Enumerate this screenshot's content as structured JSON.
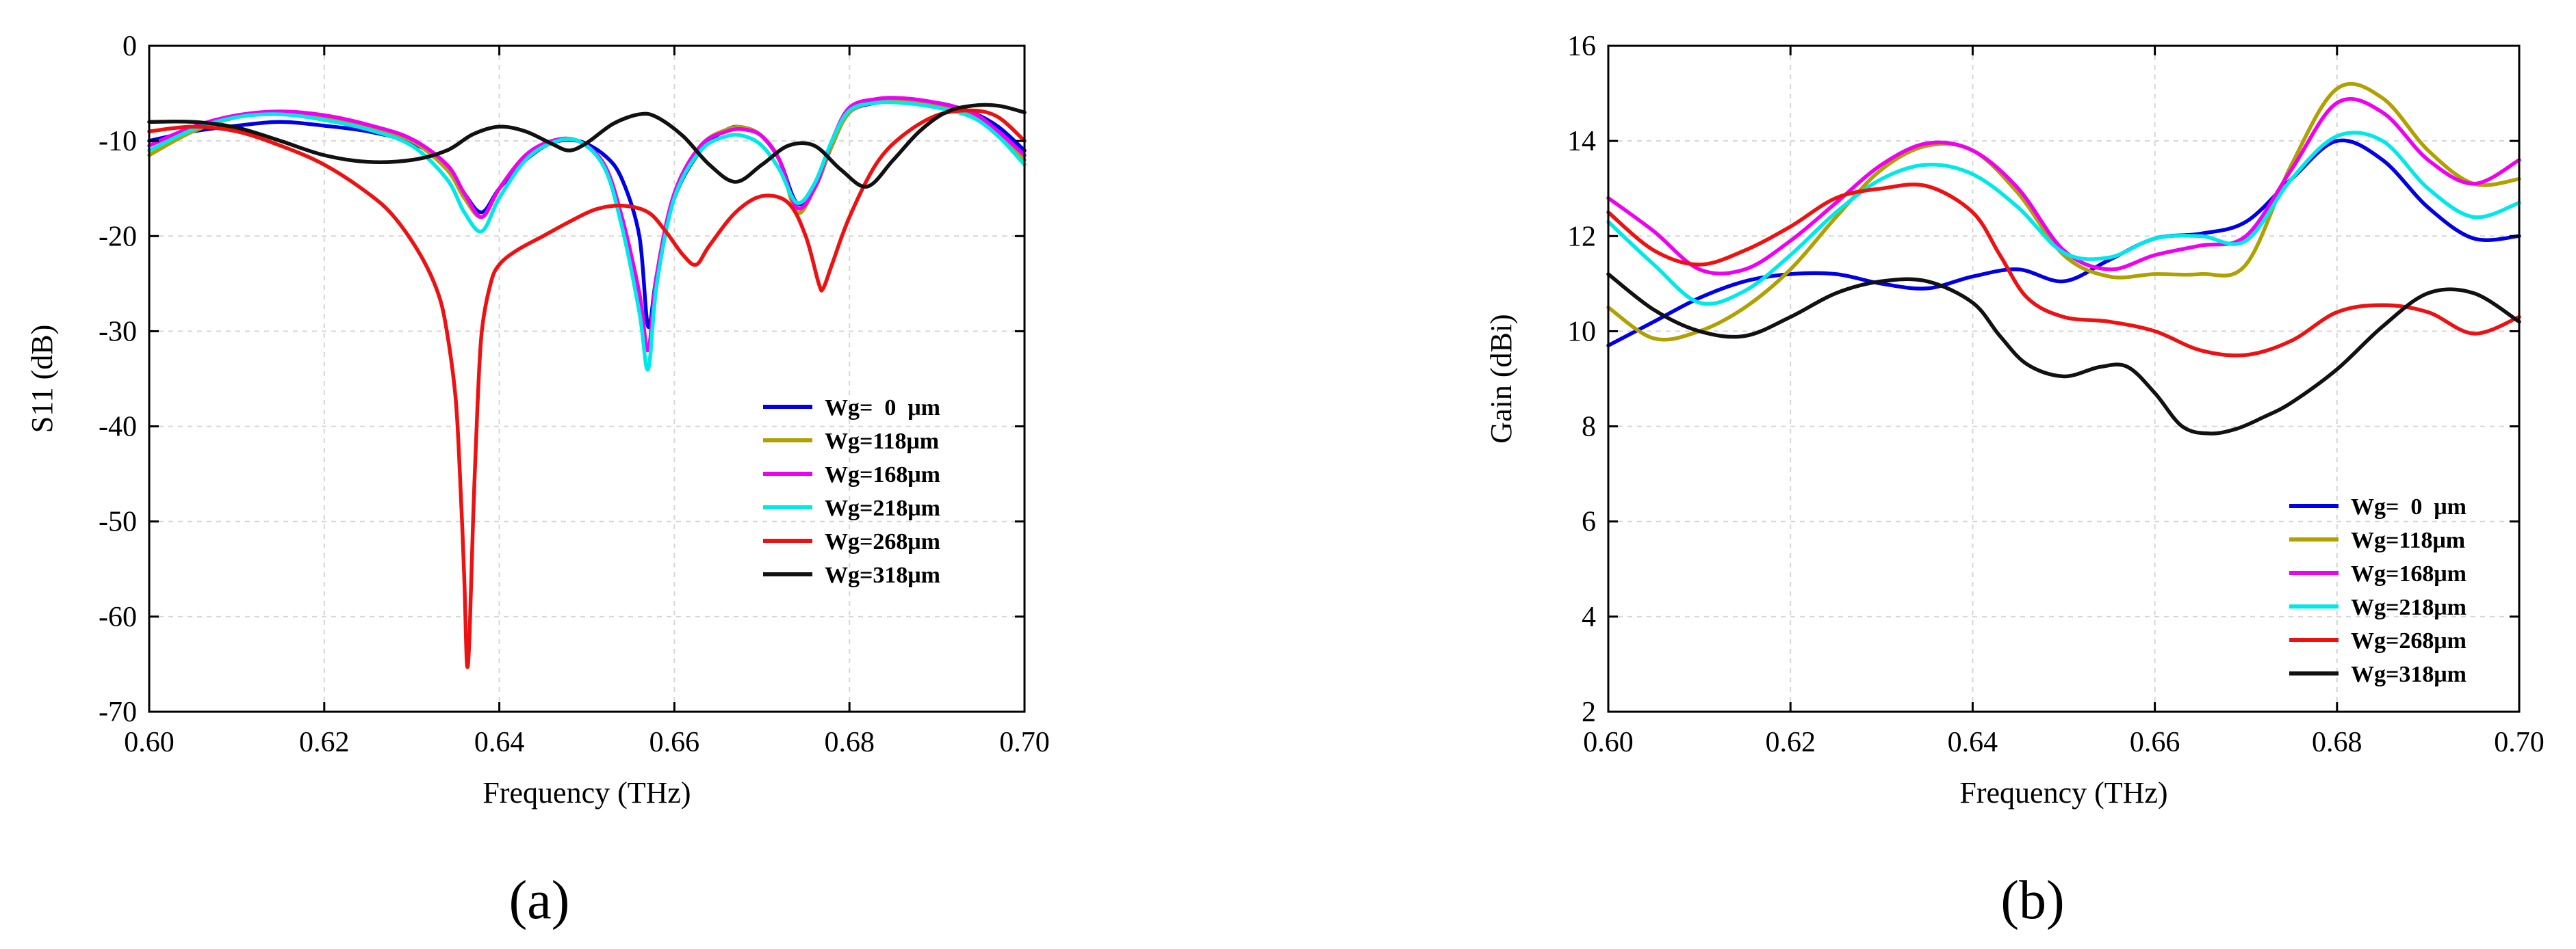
{
  "chart_data": [
    {
      "type": "line",
      "panel_label": "(a)",
      "title": "",
      "xlabel": "Frequency (THz)",
      "ylabel": "S11 (dB)",
      "xlim": [
        0.6,
        0.7
      ],
      "ylim": [
        -70,
        0
      ],
      "xticks": [
        0.6,
        0.62,
        0.64,
        0.66,
        0.68,
        0.7
      ],
      "xtick_labels": [
        "0.60",
        "0.62",
        "0.64",
        "0.66",
        "0.68",
        "0.70"
      ],
      "yticks": [
        0,
        -10,
        -20,
        -30,
        -40,
        -50,
        -60,
        -70
      ],
      "ytick_labels": [
        "0",
        "-10",
        "-20",
        "-30",
        "-40",
        "-50",
        "-60",
        "-70"
      ],
      "grid": true,
      "legend_position": "center-right",
      "series": [
        {
          "name": "Wg=  0  μm",
          "color": "#0000e6",
          "x": [
            0.6,
            0.605,
            0.61,
            0.615,
            0.62,
            0.625,
            0.63,
            0.634,
            0.636,
            0.638,
            0.64,
            0.643,
            0.646,
            0.649,
            0.652,
            0.654,
            0.656,
            0.657,
            0.658,
            0.66,
            0.663,
            0.666,
            0.668,
            0.67,
            0.672,
            0.674,
            0.676,
            0.678,
            0.68,
            0.683,
            0.686,
            0.69,
            0.694,
            0.697,
            0.7
          ],
          "y": [
            -10,
            -9,
            -8.4,
            -8,
            -8.4,
            -9,
            -10.2,
            -12.5,
            -15.5,
            -17.5,
            -15,
            -12,
            -10.2,
            -10,
            -11.5,
            -14,
            -20,
            -29.5,
            -24,
            -16,
            -11,
            -8.8,
            -8.6,
            -9.5,
            -12,
            -16.5,
            -15,
            -10.5,
            -7,
            -6,
            -5.9,
            -6,
            -7,
            -8.5,
            -11
          ]
        },
        {
          "name": "Wg=118μm",
          "color": "#b0a000",
          "x": [
            0.6,
            0.605,
            0.61,
            0.615,
            0.62,
            0.625,
            0.63,
            0.634,
            0.636,
            0.638,
            0.64,
            0.643,
            0.646,
            0.649,
            0.652,
            0.654,
            0.656,
            0.657,
            0.658,
            0.66,
            0.663,
            0.666,
            0.668,
            0.67,
            0.672,
            0.674,
            0.676,
            0.678,
            0.68,
            0.683,
            0.686,
            0.69,
            0.694,
            0.697,
            0.7
          ],
          "y": [
            -11.5,
            -9,
            -7.5,
            -7,
            -7.5,
            -8.5,
            -10,
            -13,
            -16,
            -18,
            -15,
            -11.5,
            -10,
            -10,
            -12.5,
            -18,
            -26,
            -32,
            -24,
            -15.5,
            -10.5,
            -8.8,
            -8.6,
            -9.5,
            -12,
            -17.5,
            -15,
            -10.5,
            -7,
            -5.9,
            -5.7,
            -6.2,
            -7.3,
            -9.5,
            -12
          ]
        },
        {
          "name": "Wg=168μm",
          "color": "#f000f0",
          "x": [
            0.6,
            0.605,
            0.61,
            0.615,
            0.62,
            0.625,
            0.63,
            0.634,
            0.636,
            0.638,
            0.64,
            0.643,
            0.646,
            0.649,
            0.652,
            0.654,
            0.656,
            0.657,
            0.658,
            0.66,
            0.663,
            0.666,
            0.668,
            0.67,
            0.672,
            0.674,
            0.676,
            0.678,
            0.68,
            0.683,
            0.686,
            0.69,
            0.694,
            0.697,
            0.7
          ],
          "y": [
            -10.5,
            -8.5,
            -7.3,
            -6.9,
            -7.3,
            -8.3,
            -9.8,
            -12.5,
            -15.5,
            -18,
            -15,
            -11.5,
            -10,
            -10,
            -12.5,
            -18,
            -26,
            -32,
            -24,
            -15.5,
            -10.5,
            -9,
            -8.8,
            -9.5,
            -12,
            -17,
            -15,
            -10,
            -6.5,
            -5.6,
            -5.5,
            -6,
            -7,
            -9,
            -11.5
          ]
        },
        {
          "name": "Wg=218μm",
          "color": "#00e8e8",
          "x": [
            0.6,
            0.605,
            0.61,
            0.615,
            0.62,
            0.625,
            0.63,
            0.634,
            0.636,
            0.638,
            0.64,
            0.643,
            0.646,
            0.649,
            0.652,
            0.654,
            0.656,
            0.657,
            0.658,
            0.66,
            0.663,
            0.666,
            0.668,
            0.67,
            0.672,
            0.674,
            0.676,
            0.678,
            0.68,
            0.683,
            0.686,
            0.69,
            0.694,
            0.697,
            0.7
          ],
          "y": [
            -11,
            -8.8,
            -7.5,
            -7.2,
            -7.8,
            -8.8,
            -10.5,
            -14,
            -17.5,
            -19.5,
            -16,
            -12,
            -10.2,
            -10,
            -12.8,
            -19,
            -28,
            -34,
            -25,
            -16,
            -11,
            -9.5,
            -9.5,
            -10.5,
            -13,
            -16.5,
            -14.5,
            -10,
            -6.8,
            -6,
            -6,
            -6.5,
            -7.5,
            -9.5,
            -12.5
          ]
        },
        {
          "name": "Wg=268μm",
          "color": "#ee1111",
          "x": [
            0.6,
            0.605,
            0.61,
            0.615,
            0.62,
            0.625,
            0.628,
            0.631,
            0.633,
            0.634,
            0.635,
            0.6355,
            0.636,
            0.6363,
            0.6366,
            0.637,
            0.6375,
            0.638,
            0.639,
            0.64,
            0.642,
            0.645,
            0.648,
            0.651,
            0.654,
            0.657,
            0.659,
            0.661,
            0.6625,
            0.664,
            0.667,
            0.67,
            0.673,
            0.675,
            0.6765,
            0.677,
            0.678,
            0.68,
            0.683,
            0.686,
            0.69,
            0.694,
            0.697,
            0.7
          ],
          "y": [
            -9,
            -8.5,
            -9,
            -10.5,
            -12.5,
            -15.5,
            -18,
            -22,
            -26,
            -30,
            -37,
            -45,
            -56,
            -65,
            -62,
            -50,
            -38,
            -30,
            -25,
            -23,
            -21.5,
            -20,
            -18.5,
            -17.2,
            -16.8,
            -17.5,
            -19.5,
            -22,
            -23,
            -21,
            -17.5,
            -15.8,
            -16.5,
            -20,
            -25,
            -25.5,
            -23,
            -18,
            -12.5,
            -9.5,
            -7.3,
            -6.8,
            -7.5,
            -10
          ]
        },
        {
          "name": "Wg=318μm",
          "color": "#111111",
          "x": [
            0.6,
            0.605,
            0.61,
            0.615,
            0.62,
            0.625,
            0.63,
            0.634,
            0.637,
            0.64,
            0.643,
            0.646,
            0.648,
            0.65,
            0.653,
            0.656,
            0.658,
            0.661,
            0.664,
            0.667,
            0.67,
            0.673,
            0.676,
            0.679,
            0.682,
            0.685,
            0.688,
            0.691,
            0.694,
            0.697,
            0.7
          ],
          "y": [
            -8,
            -8,
            -8.6,
            -10,
            -11.5,
            -12.2,
            -12,
            -11,
            -9.3,
            -8.5,
            -9,
            -10.3,
            -11,
            -10.2,
            -8.2,
            -7.2,
            -7.5,
            -9.5,
            -12.5,
            -14.3,
            -12.5,
            -10.5,
            -10.5,
            -13,
            -14.8,
            -12,
            -9,
            -7,
            -6.3,
            -6.3,
            -7
          ]
        }
      ]
    },
    {
      "type": "line",
      "panel_label": "(b)",
      "title": "",
      "xlabel": "Frequency (THz)",
      "ylabel": "Gain (dBi)",
      "xlim": [
        0.6,
        0.7
      ],
      "ylim": [
        2,
        16
      ],
      "xticks": [
        0.6,
        0.62,
        0.64,
        0.66,
        0.68,
        0.7
      ],
      "xtick_labels": [
        "0.60",
        "0.62",
        "0.64",
        "0.66",
        "0.68",
        "0.70"
      ],
      "yticks": [
        2,
        4,
        6,
        8,
        10,
        12,
        14,
        16
      ],
      "ytick_labels": [
        "2",
        "4",
        "6",
        "8",
        "10",
        "12",
        "14",
        "16"
      ],
      "grid": true,
      "legend_position": "bottom-right",
      "series": [
        {
          "name": "Wg=  0  μm",
          "color": "#0000e6",
          "x": [
            0.6,
            0.605,
            0.61,
            0.615,
            0.62,
            0.625,
            0.63,
            0.635,
            0.64,
            0.645,
            0.65,
            0.655,
            0.66,
            0.665,
            0.67,
            0.675,
            0.68,
            0.685,
            0.69,
            0.695,
            0.7
          ],
          "y": [
            9.7,
            10.2,
            10.7,
            11.05,
            11.2,
            11.2,
            11,
            10.9,
            11.15,
            11.3,
            11.05,
            11.5,
            11.95,
            12.05,
            12.3,
            13.2,
            14,
            13.6,
            12.6,
            11.95,
            12
          ]
        },
        {
          "name": "Wg=118μm",
          "color": "#b0a000",
          "x": [
            0.6,
            0.605,
            0.61,
            0.615,
            0.62,
            0.625,
            0.63,
            0.635,
            0.64,
            0.645,
            0.65,
            0.655,
            0.66,
            0.665,
            0.67,
            0.675,
            0.68,
            0.685,
            0.69,
            0.695,
            0.7
          ],
          "y": [
            10.5,
            9.85,
            10,
            10.5,
            11.3,
            12.4,
            13.4,
            13.9,
            13.8,
            12.9,
            11.6,
            11.15,
            11.2,
            11.2,
            11.4,
            13.5,
            15.1,
            14.9,
            13.8,
            13.1,
            13.2
          ]
        },
        {
          "name": "Wg=168μm",
          "color": "#f000f0",
          "x": [
            0.6,
            0.605,
            0.61,
            0.615,
            0.62,
            0.625,
            0.63,
            0.635,
            0.64,
            0.645,
            0.65,
            0.655,
            0.66,
            0.665,
            0.67,
            0.675,
            0.68,
            0.685,
            0.69,
            0.695,
            0.7
          ],
          "y": [
            12.8,
            12.1,
            11.3,
            11.3,
            11.9,
            12.7,
            13.5,
            13.95,
            13.8,
            13,
            11.7,
            11.3,
            11.6,
            11.8,
            12,
            13.4,
            14.8,
            14.6,
            13.6,
            13.1,
            13.6
          ]
        },
        {
          "name": "Wg=218μm",
          "color": "#00e8e8",
          "x": [
            0.6,
            0.605,
            0.61,
            0.615,
            0.62,
            0.625,
            0.63,
            0.635,
            0.64,
            0.645,
            0.65,
            0.655,
            0.66,
            0.665,
            0.67,
            0.675,
            0.68,
            0.685,
            0.69,
            0.695,
            0.7
          ],
          "y": [
            12.3,
            11.4,
            10.6,
            10.85,
            11.6,
            12.5,
            13.2,
            13.5,
            13.3,
            12.6,
            11.65,
            11.55,
            11.95,
            12,
            11.9,
            13.2,
            14.1,
            14,
            13,
            12.4,
            12.7
          ]
        },
        {
          "name": "Wg=268μm",
          "color": "#ee1111",
          "x": [
            0.6,
            0.605,
            0.61,
            0.615,
            0.62,
            0.625,
            0.63,
            0.635,
            0.64,
            0.643,
            0.646,
            0.65,
            0.655,
            0.66,
            0.665,
            0.67,
            0.675,
            0.68,
            0.685,
            0.69,
            0.695,
            0.7
          ],
          "y": [
            12.5,
            11.7,
            11.4,
            11.7,
            12.2,
            12.8,
            13,
            13.05,
            12.5,
            11.6,
            10.7,
            10.3,
            10.2,
            10,
            9.6,
            9.5,
            9.8,
            10.4,
            10.55,
            10.4,
            9.95,
            10.3
          ]
        },
        {
          "name": "Wg=318μm",
          "color": "#111111",
          "x": [
            0.6,
            0.605,
            0.61,
            0.615,
            0.62,
            0.625,
            0.63,
            0.635,
            0.64,
            0.643,
            0.646,
            0.65,
            0.654,
            0.657,
            0.66,
            0.663,
            0.666,
            0.669,
            0.672,
            0.675,
            0.68,
            0.685,
            0.69,
            0.695,
            0.7
          ],
          "y": [
            11.2,
            10.45,
            10,
            9.9,
            10.3,
            10.8,
            11.05,
            11.05,
            10.6,
            9.9,
            9.3,
            9.05,
            9.25,
            9.25,
            8.7,
            8,
            7.85,
            7.95,
            8.2,
            8.5,
            9.2,
            10.1,
            10.8,
            10.8,
            10.2
          ]
        }
      ]
    }
  ]
}
